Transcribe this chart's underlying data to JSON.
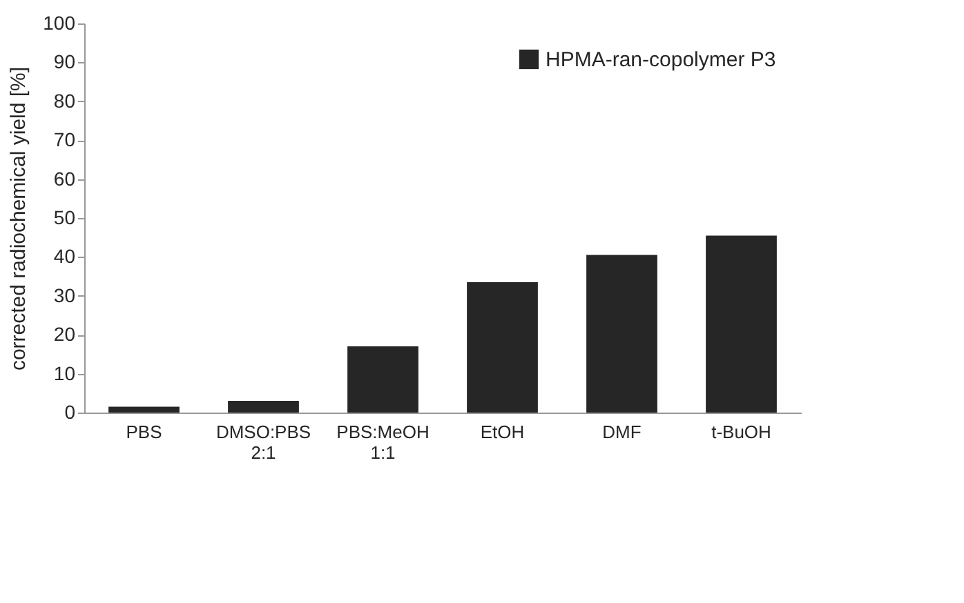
{
  "chart_data": {
    "type": "bar",
    "ylabel": "corrected radiochemical yield [%]",
    "categories": [
      "PBS",
      "DMSO:PBS\n2:1",
      "PBS:MeOH\n1:1",
      "EtOH",
      "DMF",
      "t-BuOH"
    ],
    "series": [
      {
        "name": "HPMA-ran-copolymer P3",
        "color": "#262626",
        "values": [
          1.5,
          3,
          17,
          33.5,
          40.5,
          45.5
        ]
      }
    ],
    "ylim": [
      0,
      100
    ],
    "yticks": [
      0,
      10,
      20,
      30,
      40,
      50,
      60,
      70,
      80,
      90,
      100
    ],
    "grid": false,
    "legend": "top right"
  }
}
